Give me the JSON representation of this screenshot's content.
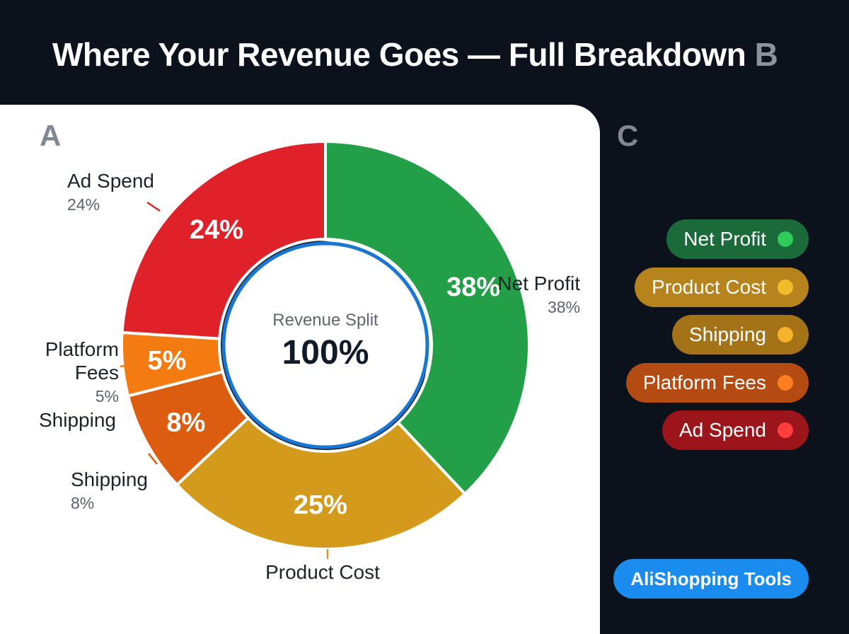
{
  "header": {
    "title": "Where Your Revenue Goes — Full Breakdown",
    "marker": "B"
  },
  "panels": {
    "a_label": "A",
    "c_label": "C"
  },
  "chart_data": {
    "type": "pie",
    "title": "Where Your Revenue Goes — Full Breakdown",
    "center_label": "Revenue Split",
    "center_value": "100%",
    "slices": [
      {
        "label": "Net Profit",
        "value": 38,
        "color": "#23a047",
        "inner_label": "38%",
        "callout_pct": "38%"
      },
      {
        "label": "Product Cost",
        "value": 25,
        "color": "#d49a1c",
        "inner_label": "25%",
        "callout_pct": ""
      },
      {
        "label": "Shipping",
        "value": 8,
        "color": "#dc5d10",
        "inner_label": "8%",
        "callout_pct": "8%"
      },
      {
        "label": "Platform Fees",
        "value": 5,
        "color": "#f47b12",
        "inner_label": "5%",
        "callout_pct": "5%"
      },
      {
        "label": "Ad Spend",
        "value": 24,
        "color": "#df2129",
        "inner_label": "24%",
        "callout_pct": "24%"
      }
    ],
    "extra_label": "Shipping",
    "legend": [
      {
        "label": "Net Profit",
        "bg": "#1a6b39",
        "dot": "#2fcc5b"
      },
      {
        "label": "Product Cost",
        "bg": "#b7831c",
        "dot": "#f3ba2a"
      },
      {
        "label": "Shipping",
        "bg": "#a47318",
        "dot": "#f5b42c"
      },
      {
        "label": "Platform Fees",
        "bg": "#b44b12",
        "dot": "#ff7f1e"
      },
      {
        "label": "Ad Spend",
        "bg": "#9b151b",
        "dot": "#ff3d3d"
      }
    ]
  },
  "brand": {
    "label": "AliShopping Tools"
  }
}
